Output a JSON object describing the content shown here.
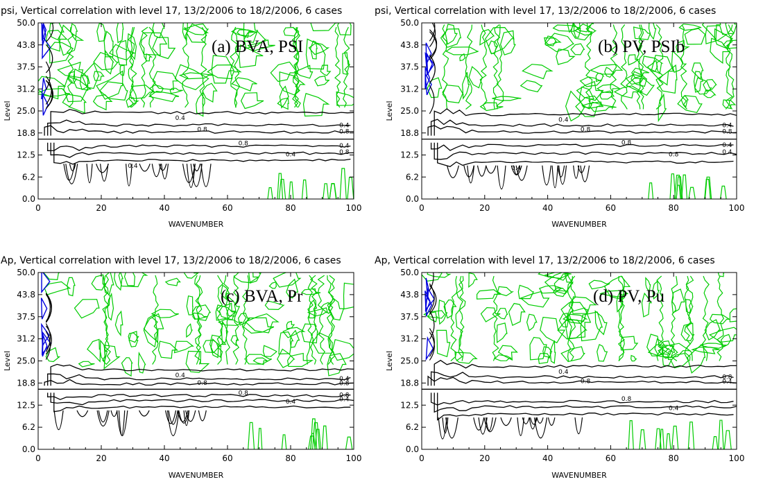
{
  "colors": {
    "positive": "#00cc00",
    "negative": "#0000dd",
    "strong": "#000000"
  },
  "chart_data": [
    {
      "type": "contour",
      "title": "psi,  Vertical correlation with level 17, 13/2/2006 to 18/2/2006,  6 cases",
      "tag": "(a) BVA, PSI",
      "xlabel": "WAVENUMBER",
      "ylabel": "Level",
      "xlim": [
        0,
        100
      ],
      "ylim": [
        0,
        50
      ],
      "x_ticks": [
        "0",
        "20",
        "40",
        "60",
        "80",
        "100"
      ],
      "y_ticks": [
        "0.0",
        "6.2",
        "12.5",
        "18.8",
        "25.0",
        "31.2",
        "37.5",
        "43.8",
        "50.0"
      ],
      "reference_level": 17,
      "contour_labels": [
        "0.4",
        "0.8",
        "0.4",
        "0.8",
        "0.8",
        "0.4",
        "0.4",
        "0.8",
        "0.4"
      ],
      "upper_contours": [
        {
          "value": 0.4,
          "level": 24.5,
          "wn1": 4
        },
        {
          "value": 0.8,
          "level": 21.0,
          "wn1": 3
        },
        {
          "value": 0.8,
          "level": 19.0,
          "wn1": 2
        }
      ],
      "lower_contours": [
        {
          "value": 0.8,
          "level": 15.0,
          "wn1": 3
        },
        {
          "value": 0.4,
          "level": 13.0,
          "wn1": 4
        },
        {
          "value": 0.4,
          "level": 11.0,
          "wn1": 5
        }
      ]
    },
    {
      "type": "contour",
      "title": "psi,  Vertical correlation with level 17, 13/2/2006 to 18/2/2006,  6 cases",
      "tag": "(b) PV, PSIb",
      "xlabel": "WAVENUMBER",
      "ylabel": "Level",
      "xlim": [
        0,
        100
      ],
      "ylim": [
        0,
        50
      ],
      "x_ticks": [
        "0",
        "20",
        "40",
        "60",
        "80",
        "100"
      ],
      "y_ticks": [
        "0.0",
        "6.2",
        "12.5",
        "18.8",
        "25.0",
        "31.2",
        "37.5",
        "43.8",
        "50.0"
      ],
      "reference_level": 17,
      "contour_labels": [
        "0.4",
        "0.8",
        "0.4",
        "0.8",
        "0.8",
        "0.8",
        "0.4",
        "0.4",
        "0.4"
      ],
      "upper_contours": [
        {
          "value": 0.4,
          "level": 24.0,
          "wn1": 4
        },
        {
          "value": 0.8,
          "level": 21.0,
          "wn1": 3
        },
        {
          "value": 0.8,
          "level": 19.0,
          "wn1": 2
        }
      ],
      "lower_contours": [
        {
          "value": 0.8,
          "level": 15.2,
          "wn1": 3
        },
        {
          "value": 0.4,
          "level": 13.0,
          "wn1": 4
        },
        {
          "value": 0.4,
          "level": 10.5,
          "wn1": 5
        }
      ]
    },
    {
      "type": "contour",
      "title": "Ap,  Vertical correlation with level 17, 13/2/2006 to 18/2/2006,  6 cases",
      "tag": "(c) BVA, Pr",
      "xlabel": "WAVENUMBER",
      "ylabel": "Level",
      "xlim": [
        0,
        100
      ],
      "ylim": [
        0,
        50
      ],
      "x_ticks": [
        "0",
        "20",
        "40",
        "60",
        "80",
        "100"
      ],
      "y_ticks": [
        "0.0",
        "6.2",
        "12.5",
        "18.8",
        "25.0",
        "31.2",
        "37.5",
        "43.8",
        "50.0"
      ],
      "reference_level": 17,
      "contour_labels": [
        "0.4",
        "0.8",
        "0.4",
        "0.8",
        "0.8",
        "0.4",
        "0.8",
        "0.4"
      ],
      "upper_contours": [
        {
          "value": 0.4,
          "level": 22.5,
          "wn1": 4
        },
        {
          "value": 0.8,
          "level": 20.0,
          "wn1": 3
        },
        {
          "value": 0.8,
          "level": 18.5,
          "wn1": 2
        }
      ],
      "lower_contours": [
        {
          "value": 0.8,
          "level": 15.2,
          "wn1": 3
        },
        {
          "value": 0.4,
          "level": 13.8,
          "wn1": 4
        },
        {
          "value": 0.4,
          "level": 12.0,
          "wn1": 5
        }
      ]
    },
    {
      "type": "contour",
      "title": "Ap,  Vertical correlation with level 17, 13/2/2006 to 18/2/2006,  6 cases",
      "tag": "(d) PV, Pu",
      "xlabel": "WAVENUMBER",
      "ylabel": "Level",
      "xlim": [
        0,
        100
      ],
      "ylim": [
        0,
        50
      ],
      "x_ticks": [
        "0",
        "20",
        "40",
        "60",
        "80",
        "100"
      ],
      "y_ticks": [
        "0.0",
        "6.2",
        "12.5",
        "18.8",
        "25.0",
        "31.2",
        "37.5",
        "43.8",
        "50.0"
      ],
      "reference_level": 17,
      "contour_labels": [
        "0.4",
        "0.8",
        "0.8",
        "0.4",
        "0.8",
        "0.4"
      ],
      "upper_contours": [
        {
          "value": 0.4,
          "level": 23.5,
          "wn1": 4
        },
        {
          "value": 0.8,
          "level": 20.5,
          "wn1": 3
        },
        {
          "value": 0.8,
          "level": 19.0,
          "wn1": 2
        }
      ],
      "lower_contours": [
        {
          "value": 0.8,
          "level": 13.5,
          "wn1": 3
        },
        {
          "value": 0.4,
          "level": 12.0,
          "wn1": 4
        },
        {
          "value": 0.4,
          "level": 10.0,
          "wn1": 5
        }
      ]
    }
  ]
}
